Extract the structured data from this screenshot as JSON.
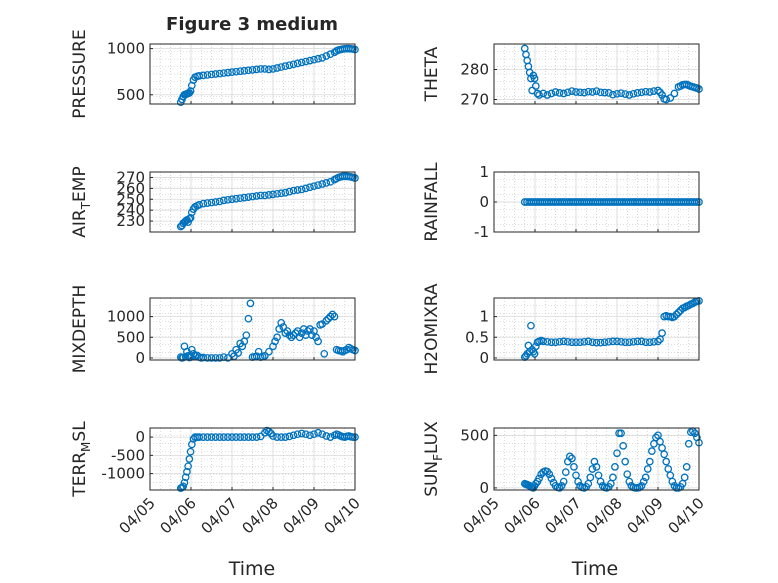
{
  "figure": {
    "title": "Figure 3 medium",
    "marker_color": "#0072BD",
    "axis_color": "#262626",
    "grid_color": "#bdbdbd",
    "xlabel": "Time",
    "xticks": [
      "04/05",
      "04/06",
      "04/07",
      "04/08",
      "04/09",
      "04/10"
    ]
  },
  "chart_data": [
    {
      "type": "scatter",
      "ylabel": "PRESSURE",
      "ylim": [
        400,
        1050
      ],
      "yticks": [
        500,
        1000
      ],
      "yticklabels": [
        "500",
        "1000"
      ],
      "xlim": [
        0,
        5
      ],
      "x": [
        0.75,
        0.78,
        0.81,
        0.84,
        0.87,
        0.9,
        0.93,
        0.96,
        0.99,
        1.02,
        1.06,
        1.1,
        1.15,
        1.2,
        1.3,
        1.4,
        1.5,
        1.6,
        1.7,
        1.8,
        1.9,
        2.0,
        2.1,
        2.2,
        2.3,
        2.4,
        2.5,
        2.6,
        2.7,
        2.8,
        2.9,
        3.0,
        3.1,
        3.2,
        3.3,
        3.4,
        3.5,
        3.6,
        3.7,
        3.8,
        3.9,
        4.0,
        4.1,
        4.2,
        4.3,
        4.4,
        4.5,
        4.55,
        4.6,
        4.65,
        4.7,
        4.75,
        4.8,
        4.85,
        4.9,
        4.95,
        5.0
      ],
      "y": [
        420,
        450,
        480,
        500,
        505,
        510,
        515,
        520,
        540,
        600,
        660,
        690,
        700,
        705,
        710,
        715,
        720,
        725,
        730,
        735,
        740,
        745,
        750,
        755,
        760,
        765,
        770,
        775,
        780,
        780,
        775,
        780,
        790,
        800,
        810,
        820,
        830,
        840,
        850,
        860,
        870,
        880,
        890,
        900,
        920,
        940,
        960,
        975,
        985,
        990,
        995,
        998,
        1000,
        1000,
        998,
        995,
        990
      ]
    },
    {
      "type": "scatter",
      "ylabel": "THETA",
      "ylim": [
        268.5,
        288.5
      ],
      "yticks": [
        270,
        280
      ],
      "yticklabels": [
        "270",
        "280"
      ],
      "xlim": [
        0,
        5
      ],
      "x": [
        0.75,
        0.78,
        0.81,
        0.84,
        0.87,
        0.9,
        0.93,
        0.96,
        0.99,
        1.02,
        1.06,
        1.1,
        1.2,
        1.3,
        1.4,
        1.5,
        1.6,
        1.7,
        1.8,
        1.9,
        2.0,
        2.1,
        2.2,
        2.3,
        2.4,
        2.5,
        2.6,
        2.7,
        2.8,
        2.9,
        3.0,
        3.1,
        3.2,
        3.3,
        3.4,
        3.5,
        3.6,
        3.7,
        3.8,
        3.9,
        4.0,
        4.05,
        4.1,
        4.15,
        4.2,
        4.3,
        4.4,
        4.5,
        4.55,
        4.6,
        4.65,
        4.7,
        4.75,
        4.8,
        4.85,
        4.9,
        4.95,
        5.0
      ],
      "y": [
        287,
        285,
        283,
        281,
        279,
        277,
        273,
        278,
        277,
        274.5,
        272,
        271.5,
        272,
        271.5,
        272,
        272.5,
        272.2,
        272,
        272.4,
        272.8,
        272.5,
        272.4,
        272.3,
        272.6,
        272.5,
        272.8,
        272.4,
        272.3,
        272.2,
        271.6,
        271.9,
        272.1,
        271.8,
        271.5,
        271.9,
        272.2,
        272.4,
        272.6,
        272.5,
        272.8,
        273,
        272.4,
        271.5,
        270.2,
        270,
        270.5,
        272,
        274.2,
        274.5,
        274.9,
        275,
        275,
        274.7,
        274.4,
        274.2,
        274,
        273.8,
        273.5
      ]
    },
    {
      "type": "scatter",
      "ylabel": "AIR_TEMP",
      "ylim": [
        220,
        275
      ],
      "yticks": [
        230,
        240,
        250,
        260,
        270
      ],
      "yticklabels": [
        "230",
        "240",
        "250",
        "260",
        "270"
      ],
      "xlim": [
        0,
        5
      ],
      "x": [
        0.75,
        0.78,
        0.81,
        0.84,
        0.87,
        0.9,
        0.93,
        0.96,
        0.99,
        1.02,
        1.06,
        1.1,
        1.15,
        1.2,
        1.3,
        1.4,
        1.5,
        1.6,
        1.7,
        1.8,
        1.9,
        2.0,
        2.1,
        2.2,
        2.3,
        2.4,
        2.5,
        2.6,
        2.7,
        2.8,
        2.9,
        3.0,
        3.1,
        3.2,
        3.3,
        3.4,
        3.5,
        3.6,
        3.7,
        3.8,
        3.9,
        4.0,
        4.1,
        4.2,
        4.3,
        4.4,
        4.5,
        4.55,
        4.6,
        4.65,
        4.7,
        4.75,
        4.8,
        4.85,
        4.9,
        4.95,
        5.0
      ],
      "y": [
        225,
        226,
        228,
        229,
        230,
        231,
        229,
        232,
        233,
        238,
        241,
        243,
        244,
        245,
        246,
        246.5,
        247,
        247.5,
        248,
        249,
        249.5,
        250,
        250.5,
        251,
        251.5,
        252,
        252.5,
        253,
        253.5,
        253.5,
        254,
        254.5,
        255,
        255.5,
        256,
        257,
        258,
        258.5,
        259,
        260,
        261,
        262,
        263,
        264,
        265,
        266,
        268,
        269,
        270,
        270.5,
        271,
        271,
        271,
        270.8,
        270.5,
        270,
        269.5
      ]
    },
    {
      "type": "scatter",
      "ylabel": "RAINFALL",
      "ylim": [
        -1,
        1
      ],
      "yticks": [
        -1,
        0,
        1
      ],
      "yticklabels": [
        "-1",
        "0",
        "1"
      ],
      "xlim": [
        0,
        5
      ],
      "x_range": [
        0.75,
        5.0
      ],
      "constant_y": 0,
      "n_points": 80
    },
    {
      "type": "scatter",
      "ylabel": "MIXDEPTH",
      "ylim": [
        -50,
        1450
      ],
      "yticks": [
        0,
        500,
        1000
      ],
      "yticklabels": [
        "0",
        "500",
        "1000"
      ],
      "xlim": [
        0,
        5
      ],
      "x": [
        0.75,
        0.78,
        0.81,
        0.84,
        0.87,
        0.9,
        0.93,
        0.96,
        0.99,
        1.02,
        1.06,
        1.1,
        1.15,
        1.2,
        1.25,
        1.3,
        1.4,
        1.5,
        1.6,
        1.7,
        1.8,
        1.9,
        2.0,
        2.05,
        2.1,
        2.15,
        2.2,
        2.25,
        2.3,
        2.35,
        2.4,
        2.45,
        2.5,
        2.55,
        2.6,
        2.65,
        2.7,
        2.75,
        2.8,
        2.9,
        3.0,
        3.05,
        3.1,
        3.15,
        3.2,
        3.25,
        3.3,
        3.35,
        3.4,
        3.45,
        3.5,
        3.55,
        3.6,
        3.65,
        3.7,
        3.75,
        3.8,
        3.85,
        3.9,
        3.95,
        4.0,
        4.05,
        4.1,
        4.15,
        4.2,
        4.25,
        4.3,
        4.35,
        4.4,
        4.45,
        4.5,
        4.55,
        4.6,
        4.65,
        4.7,
        4.75,
        4.8,
        4.85,
        4.9,
        4.95,
        5.0
      ],
      "y": [
        20,
        0,
        10,
        280,
        30,
        150,
        50,
        10,
        20,
        200,
        100,
        50,
        60,
        20,
        0,
        10,
        0,
        0,
        0,
        0,
        20,
        0,
        100,
        40,
        200,
        120,
        350,
        280,
        400,
        550,
        950,
        1320,
        20,
        30,
        40,
        150,
        20,
        30,
        50,
        150,
        280,
        400,
        500,
        700,
        850,
        750,
        600,
        650,
        550,
        500,
        550,
        600,
        650,
        500,
        600,
        700,
        550,
        650,
        700,
        550,
        650,
        500,
        400,
        800,
        820,
        100,
        900,
        950,
        1000,
        1050,
        1000,
        200,
        180,
        170,
        150,
        180,
        200,
        250,
        220,
        200,
        180
      ]
    },
    {
      "type": "scatter",
      "ylabel": "H2OMIXRA",
      "ylim": [
        -0.05,
        1.45
      ],
      "yticks": [
        0,
        0.5,
        1
      ],
      "yticklabels": [
        "0",
        "0.5",
        "1"
      ],
      "xlim": [
        0,
        5
      ],
      "x": [
        0.75,
        0.78,
        0.81,
        0.84,
        0.87,
        0.9,
        0.93,
        0.96,
        0.99,
        1.02,
        1.06,
        1.1,
        1.15,
        1.2,
        1.3,
        1.4,
        1.5,
        1.6,
        1.7,
        1.8,
        1.9,
        2.0,
        2.1,
        2.2,
        2.3,
        2.4,
        2.5,
        2.6,
        2.7,
        2.8,
        2.9,
        3.0,
        3.1,
        3.2,
        3.3,
        3.4,
        3.5,
        3.6,
        3.7,
        3.8,
        3.9,
        4.0,
        4.05,
        4.1,
        4.15,
        4.2,
        4.25,
        4.3,
        4.35,
        4.4,
        4.45,
        4.5,
        4.55,
        4.6,
        4.65,
        4.7,
        4.75,
        4.8,
        4.85,
        4.9,
        4.95,
        5.0
      ],
      "y": [
        0.02,
        0.05,
        0.1,
        0.3,
        0.15,
        0.78,
        0.2,
        0.15,
        0.1,
        0.28,
        0.38,
        0.4,
        0.42,
        0.4,
        0.39,
        0.38,
        0.38,
        0.39,
        0.4,
        0.39,
        0.38,
        0.38,
        0.38,
        0.39,
        0.4,
        0.38,
        0.37,
        0.37,
        0.38,
        0.39,
        0.4,
        0.4,
        0.39,
        0.38,
        0.38,
        0.39,
        0.4,
        0.4,
        0.38,
        0.38,
        0.39,
        0.4,
        0.45,
        0.6,
        1.0,
        1.02,
        1.0,
        1.0,
        0.98,
        1.0,
        1.05,
        1.1,
        1.15,
        1.2,
        1.22,
        1.25,
        1.27,
        1.3,
        1.32,
        1.35,
        1.37,
        1.38
      ]
    },
    {
      "type": "scatter",
      "ylabel": "TERR_MSL",
      "ylim": [
        -1450,
        250
      ],
      "yticks": [
        -1000,
        -500,
        0
      ],
      "yticklabels": [
        "-1000",
        "-500",
        "0"
      ],
      "xlim": [
        0,
        5
      ],
      "x": [
        0.75,
        0.78,
        0.81,
        0.84,
        0.87,
        0.9,
        0.93,
        0.96,
        0.99,
        1.02,
        1.06,
        1.1,
        1.15,
        1.2,
        1.3,
        1.4,
        1.5,
        1.6,
        1.7,
        1.8,
        1.9,
        2.0,
        2.1,
        2.2,
        2.3,
        2.4,
        2.5,
        2.6,
        2.7,
        2.8,
        2.85,
        2.9,
        2.95,
        3.0,
        3.1,
        3.2,
        3.3,
        3.4,
        3.5,
        3.6,
        3.7,
        3.8,
        3.9,
        4.0,
        4.1,
        4.2,
        4.3,
        4.4,
        4.5,
        4.55,
        4.6,
        4.65,
        4.7,
        4.75,
        4.8,
        4.85,
        4.9,
        4.95,
        5.0
      ],
      "y": [
        -1400,
        -1380,
        -1350,
        -1250,
        -1100,
        -950,
        -800,
        -600,
        -400,
        -200,
        -50,
        0,
        0,
        0,
        0,
        0,
        0,
        0,
        0,
        0,
        0,
        0,
        0,
        0,
        0,
        0,
        0,
        0,
        20,
        120,
        180,
        150,
        100,
        30,
        0,
        0,
        0,
        20,
        50,
        80,
        100,
        80,
        50,
        80,
        120,
        80,
        30,
        0,
        50,
        80,
        60,
        30,
        10,
        0,
        20,
        30,
        10,
        0,
        0
      ]
    },
    {
      "type": "scatter",
      "ylabel": "SUN_FLUX",
      "ylim": [
        -20,
        570
      ],
      "yticks": [
        0,
        500
      ],
      "yticklabels": [
        "0",
        "500"
      ],
      "xlim": [
        0,
        5
      ],
      "x": [
        0.75,
        0.78,
        0.81,
        0.84,
        0.87,
        0.9,
        0.93,
        0.96,
        0.99,
        1.02,
        1.06,
        1.1,
        1.15,
        1.2,
        1.25,
        1.3,
        1.35,
        1.4,
        1.45,
        1.5,
        1.55,
        1.6,
        1.65,
        1.7,
        1.75,
        1.8,
        1.85,
        1.9,
        1.95,
        2.0,
        2.05,
        2.1,
        2.15,
        2.2,
        2.25,
        2.3,
        2.35,
        2.4,
        2.45,
        2.5,
        2.55,
        2.6,
        2.65,
        2.7,
        2.75,
        2.8,
        2.85,
        2.9,
        2.95,
        3.0,
        3.05,
        3.1,
        3.15,
        3.2,
        3.25,
        3.3,
        3.35,
        3.4,
        3.45,
        3.5,
        3.55,
        3.6,
        3.65,
        3.7,
        3.75,
        3.8,
        3.85,
        3.9,
        3.95,
        4.0,
        4.05,
        4.1,
        4.15,
        4.2,
        4.25,
        4.3,
        4.35,
        4.4,
        4.45,
        4.5,
        4.55,
        4.6,
        4.65,
        4.7,
        4.75,
        4.8,
        4.85,
        4.9,
        4.95,
        5.0
      ],
      "y": [
        40,
        35,
        30,
        25,
        20,
        10,
        5,
        0,
        20,
        40,
        60,
        90,
        130,
        150,
        160,
        155,
        130,
        90,
        50,
        20,
        5,
        0,
        20,
        60,
        150,
        250,
        300,
        280,
        200,
        120,
        60,
        20,
        5,
        0,
        10,
        40,
        100,
        180,
        250,
        200,
        120,
        60,
        20,
        5,
        0,
        10,
        40,
        100,
        200,
        330,
        520,
        520,
        400,
        250,
        130,
        60,
        20,
        5,
        0,
        0,
        5,
        20,
        60,
        100,
        180,
        250,
        350,
        420,
        480,
        500,
        440,
        380,
        320,
        250,
        180,
        120,
        60,
        20,
        0,
        0,
        10,
        40,
        100,
        200,
        420,
        530,
        540,
        520,
        480,
        430
      ]
    }
  ]
}
